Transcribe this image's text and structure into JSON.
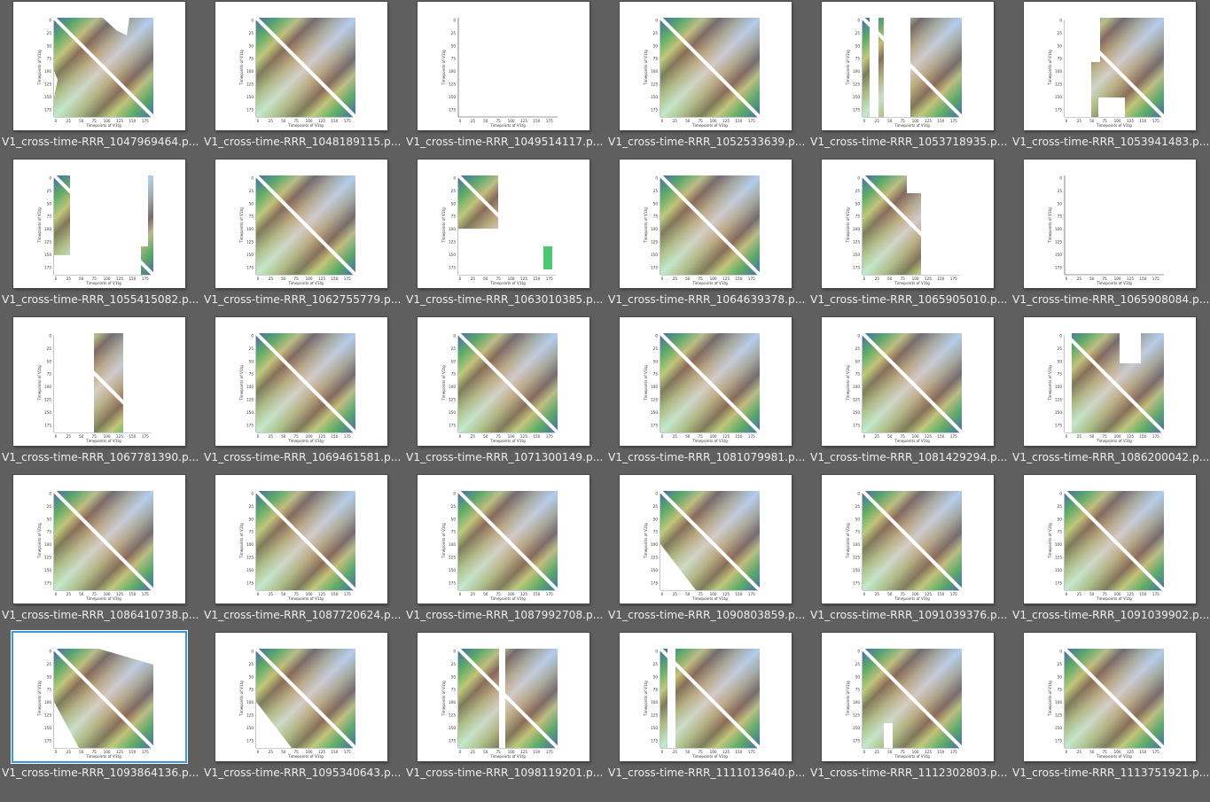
{
  "files": [
    {
      "name": "V1_cross-time-RRR_1047969464.p...",
      "variant": "masked-top-right",
      "selected": false
    },
    {
      "name": "V1_cross-time-RRR_1048189115.p...",
      "variant": "full",
      "selected": false
    },
    {
      "name": "V1_cross-time-RRR_1049514117.p...",
      "variant": "empty",
      "selected": false
    },
    {
      "name": "V1_cross-time-RRR_1052533639.p...",
      "variant": "full-wide",
      "selected": false
    },
    {
      "name": "V1_cross-time-RRR_1053718935.p...",
      "variant": "vertical-gap",
      "selected": false
    },
    {
      "name": "V1_cross-time-RRR_1053941483.p...",
      "variant": "patchy-left",
      "selected": false
    },
    {
      "name": "V1_cross-time-RRR_1055415082.p...",
      "variant": "sparse",
      "selected": false
    },
    {
      "name": "V1_cross-time-RRR_1062755779.p...",
      "variant": "full-blue",
      "selected": false
    },
    {
      "name": "V1_cross-time-RRR_1063010385.p...",
      "variant": "corner",
      "selected": false
    },
    {
      "name": "V1_cross-time-RRR_1064639378.p...",
      "variant": "full",
      "selected": false
    },
    {
      "name": "V1_cross-time-RRR_1065905010.p...",
      "variant": "left-block",
      "selected": false
    },
    {
      "name": "V1_cross-time-RRR_1065908084.p...",
      "variant": "empty",
      "selected": false
    },
    {
      "name": "V1_cross-time-RRR_1067781390.p...",
      "variant": "strip",
      "selected": false
    },
    {
      "name": "V1_cross-time-RRR_1069461581.p...",
      "variant": "full",
      "selected": false
    },
    {
      "name": "V1_cross-time-RRR_1071300149.p...",
      "variant": "full",
      "selected": false
    },
    {
      "name": "V1_cross-time-RRR_1081079981.p...",
      "variant": "full",
      "selected": false
    },
    {
      "name": "V1_cross-time-RRR_1081429294.p...",
      "variant": "full",
      "selected": false
    },
    {
      "name": "V1_cross-time-RRR_1086200042.p...",
      "variant": "patchy-top",
      "selected": false
    },
    {
      "name": "V1_cross-time-RRR_1086410738.p...",
      "variant": "full-wide",
      "selected": false
    },
    {
      "name": "V1_cross-time-RRR_1087720624.p...",
      "variant": "full",
      "selected": false
    },
    {
      "name": "V1_cross-time-RRR_1087992708.p...",
      "variant": "full",
      "selected": false
    },
    {
      "name": "V1_cross-time-RRR_1090803859.p...",
      "variant": "masked-bottom-left",
      "selected": false
    },
    {
      "name": "V1_cross-time-RRR_1091039376.p...",
      "variant": "full-wide",
      "selected": false
    },
    {
      "name": "V1_cross-time-RRR_1091039902.p...",
      "variant": "full-wide",
      "selected": false
    },
    {
      "name": "V1_cross-time-RRR_1093864136.p...",
      "variant": "masked-both",
      "selected": true
    },
    {
      "name": "V1_cross-time-RRR_1095340643.p...",
      "variant": "masked-bottom-left",
      "selected": false
    },
    {
      "name": "V1_cross-time-RRR_1098119201.p...",
      "variant": "vertical-line",
      "selected": false
    },
    {
      "name": "V1_cross-time-RRR_1111013640.p...",
      "variant": "vertical-line-left",
      "selected": false
    },
    {
      "name": "V1_cross-time-RRR_1112302803.p...",
      "variant": "patchy-bottom",
      "selected": false
    },
    {
      "name": "V1_cross-time-RRR_1113751921.p...",
      "variant": "full",
      "selected": false
    }
  ],
  "thumb": {
    "yticks": [
      "0",
      "25",
      "50",
      "75",
      "100",
      "125",
      "150",
      "175"
    ],
    "xticks": [
      "0",
      "25",
      "50",
      "75",
      "100",
      "125",
      "150",
      "175"
    ],
    "xlabel": "Timepoints of V1tg",
    "ylabel": "Timepoints of V1tg"
  },
  "colors": {
    "background": "#5f5f5f",
    "caption": "#eeeeee",
    "selection": "#3a9ad9",
    "diag_white": "#ffffff",
    "brown": "#8a6a58",
    "tan": "#d9c89a",
    "yellow": "#e6ea8a",
    "green": "#4cc86e",
    "blue": "#1f6fd6"
  }
}
